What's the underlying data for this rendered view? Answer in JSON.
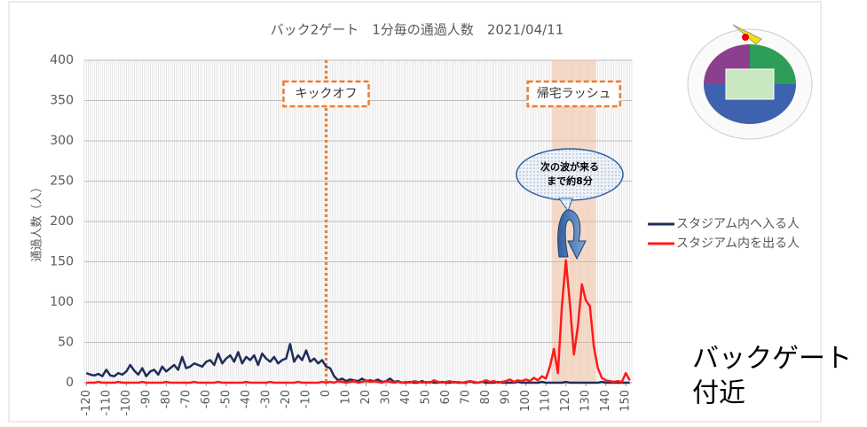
{
  "chart_data": {
    "type": "line",
    "title": "バック2ゲート　1分毎の通過人数　2021/04/11",
    "y_label": "通過人数（人）",
    "x": [
      -120,
      -118,
      -116,
      -114,
      -112,
      -110,
      -108,
      -106,
      -104,
      -102,
      -100,
      -98,
      -96,
      -94,
      -92,
      -90,
      -88,
      -86,
      -84,
      -82,
      -80,
      -78,
      -76,
      -74,
      -72,
      -70,
      -68,
      -66,
      -64,
      -62,
      -60,
      -58,
      -56,
      -54,
      -52,
      -50,
      -48,
      -46,
      -44,
      -42,
      -40,
      -38,
      -36,
      -34,
      -32,
      -30,
      -28,
      -26,
      -24,
      -22,
      -20,
      -18,
      -16,
      -14,
      -12,
      -10,
      -8,
      -6,
      -4,
      -2,
      0,
      2,
      4,
      6,
      8,
      10,
      12,
      14,
      16,
      18,
      20,
      22,
      24,
      26,
      28,
      30,
      32,
      34,
      36,
      38,
      40,
      42,
      44,
      46,
      48,
      50,
      52,
      54,
      56,
      58,
      60,
      62,
      64,
      66,
      68,
      70,
      72,
      74,
      76,
      78,
      80,
      82,
      84,
      86,
      88,
      90,
      92,
      94,
      96,
      98,
      100,
      102,
      104,
      106,
      108,
      110,
      112,
      114,
      116,
      118,
      120,
      122,
      124,
      126,
      128,
      130,
      132,
      134,
      136,
      138,
      140,
      142,
      144,
      146,
      148,
      150,
      152
    ],
    "series": [
      {
        "name": "スタジアム内へ入る人",
        "color": "#1f2d5a",
        "values": [
          12,
          10,
          9,
          11,
          8,
          16,
          9,
          8,
          12,
          10,
          14,
          22,
          15,
          10,
          18,
          8,
          14,
          16,
          10,
          20,
          14,
          18,
          22,
          16,
          32,
          18,
          20,
          24,
          22,
          20,
          26,
          28,
          22,
          36,
          24,
          30,
          34,
          26,
          38,
          24,
          32,
          28,
          34,
          22,
          36,
          30,
          26,
          32,
          24,
          28,
          30,
          48,
          26,
          34,
          28,
          40,
          26,
          30,
          24,
          28,
          20,
          18,
          8,
          3,
          5,
          2,
          4,
          3,
          2,
          5,
          2,
          3,
          2,
          4,
          1,
          2,
          5,
          1,
          2,
          0,
          0,
          1,
          0,
          0,
          2,
          0,
          1,
          0,
          0,
          1,
          0,
          0,
          1,
          0,
          0,
          0,
          2,
          0,
          0,
          1,
          0,
          0,
          0,
          1,
          0,
          0,
          0,
          0,
          1,
          0,
          0,
          0,
          0,
          0,
          1,
          0,
          0,
          0,
          0,
          0,
          1,
          0,
          0,
          0,
          0,
          0,
          0,
          0,
          0,
          1,
          0,
          0,
          0,
          0,
          0,
          0,
          0
        ]
      },
      {
        "name": "スタジアム内を出る人",
        "color": "#ff1a1a",
        "values": [
          0,
          0,
          0,
          1,
          0,
          0,
          0,
          0,
          1,
          0,
          0,
          0,
          0,
          0,
          1,
          0,
          0,
          0,
          0,
          0,
          1,
          0,
          0,
          0,
          0,
          0,
          0,
          1,
          0,
          0,
          0,
          0,
          0,
          1,
          0,
          0,
          0,
          0,
          0,
          0,
          1,
          0,
          0,
          0,
          0,
          0,
          1,
          0,
          0,
          0,
          0,
          0,
          0,
          1,
          0,
          0,
          0,
          0,
          0,
          1,
          0,
          1,
          0,
          2,
          1,
          0,
          1,
          2,
          0,
          1,
          3,
          1,
          2,
          1,
          0,
          2,
          1,
          0,
          1,
          0,
          1,
          0,
          2,
          1,
          0,
          1,
          0,
          3,
          1,
          0,
          1,
          2,
          0,
          1,
          0,
          1,
          2,
          1,
          0,
          1,
          3,
          1,
          2,
          0,
          1,
          2,
          4,
          1,
          3,
          2,
          4,
          2,
          6,
          3,
          8,
          5,
          20,
          42,
          12,
          95,
          152,
          98,
          35,
          70,
          122,
          102,
          95,
          45,
          18,
          6,
          3,
          2,
          1,
          2,
          1,
          12,
          3
        ]
      }
    ],
    "xlim": [
      -121,
      153
    ],
    "ylim": [
      0,
      400
    ],
    "xticks": [
      -120,
      -110,
      -100,
      -90,
      -80,
      -70,
      -60,
      -50,
      -40,
      -30,
      -20,
      -10,
      0,
      10,
      20,
      30,
      40,
      50,
      60,
      70,
      80,
      90,
      100,
      110,
      120,
      130,
      140,
      150
    ],
    "yticks": [
      0,
      50,
      100,
      150,
      200,
      250,
      300,
      350,
      400
    ],
    "grid": true,
    "annotations": {
      "kickoff": {
        "label": "キックオフ",
        "x": 0
      },
      "rush": {
        "label": "帰宅ラッシュ",
        "range": [
          113,
          135
        ]
      },
      "bubble": [
        "次の波が来る",
        "まで約8分"
      ],
      "location": [
        "バックゲート",
        "付近"
      ]
    }
  }
}
